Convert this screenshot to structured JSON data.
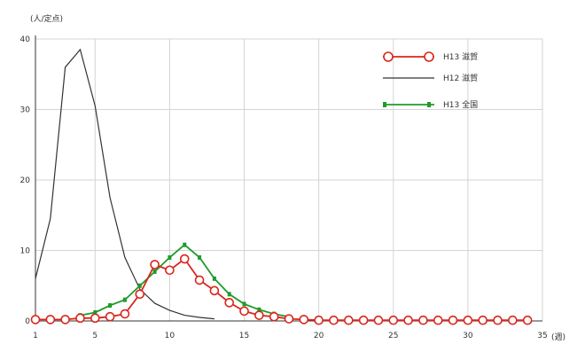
{
  "chart_data": {
    "type": "line",
    "title": "",
    "ylabel": "(人/定点)",
    "xlabel": "(週)",
    "xlim": [
      1,
      35
    ],
    "ylim": [
      0,
      40
    ],
    "x_ticks": [
      1,
      5,
      10,
      15,
      20,
      25,
      30,
      35
    ],
    "y_ticks": [
      0,
      10,
      20,
      30,
      40
    ],
    "x_tick_labels": [
      "1",
      "5",
      "10",
      "15",
      "20",
      "25",
      "30",
      "35"
    ],
    "y_tick_labels": [
      "0",
      "10",
      "20",
      "30",
      "40"
    ],
    "grid": true,
    "legend_position": "top-right",
    "series": [
      {
        "name": "H13 滋賀",
        "color": "#d9261c",
        "marker": "circle",
        "x": [
          1,
          2,
          3,
          4,
          5,
          6,
          7,
          8,
          9,
          10,
          11,
          12,
          13,
          14,
          15,
          16,
          17,
          18,
          19,
          20,
          21,
          22,
          23,
          24,
          25,
          26,
          27,
          28,
          29,
          30,
          31,
          32,
          33,
          34
        ],
        "y": [
          0.2,
          0.2,
          0.2,
          0.4,
          0.4,
          0.6,
          1.0,
          3.8,
          8.0,
          7.2,
          8.8,
          5.8,
          4.3,
          2.6,
          1.4,
          0.8,
          0.6,
          0.3,
          0.2,
          0.1,
          0.1,
          0.1,
          0.1,
          0.1,
          0.1,
          0.1,
          0.1,
          0.1,
          0.1,
          0.1,
          0.1,
          0.1,
          0.1,
          0.1
        ]
      },
      {
        "name": "H12 滋賀",
        "color": "#333333",
        "marker": "none",
        "x": [
          1,
          2,
          3,
          4,
          5,
          6,
          7,
          8,
          9,
          10,
          11,
          12,
          13
        ],
        "y": [
          6.0,
          14.5,
          36.0,
          38.5,
          30.5,
          17.5,
          9.0,
          4.5,
          2.5,
          1.5,
          0.8,
          0.5,
          0.3
        ]
      },
      {
        "name": "H13 全国",
        "color": "#1f9c2a",
        "marker": "bar",
        "x": [
          4,
          5,
          6,
          7,
          8,
          9,
          10,
          11,
          12,
          13,
          14,
          15,
          16,
          17,
          18
        ],
        "y": [
          0.8,
          1.2,
          2.2,
          3.0,
          5.0,
          7.0,
          9.0,
          10.8,
          9.0,
          6.0,
          3.8,
          2.4,
          1.6,
          1.0,
          0.6
        ]
      }
    ]
  }
}
